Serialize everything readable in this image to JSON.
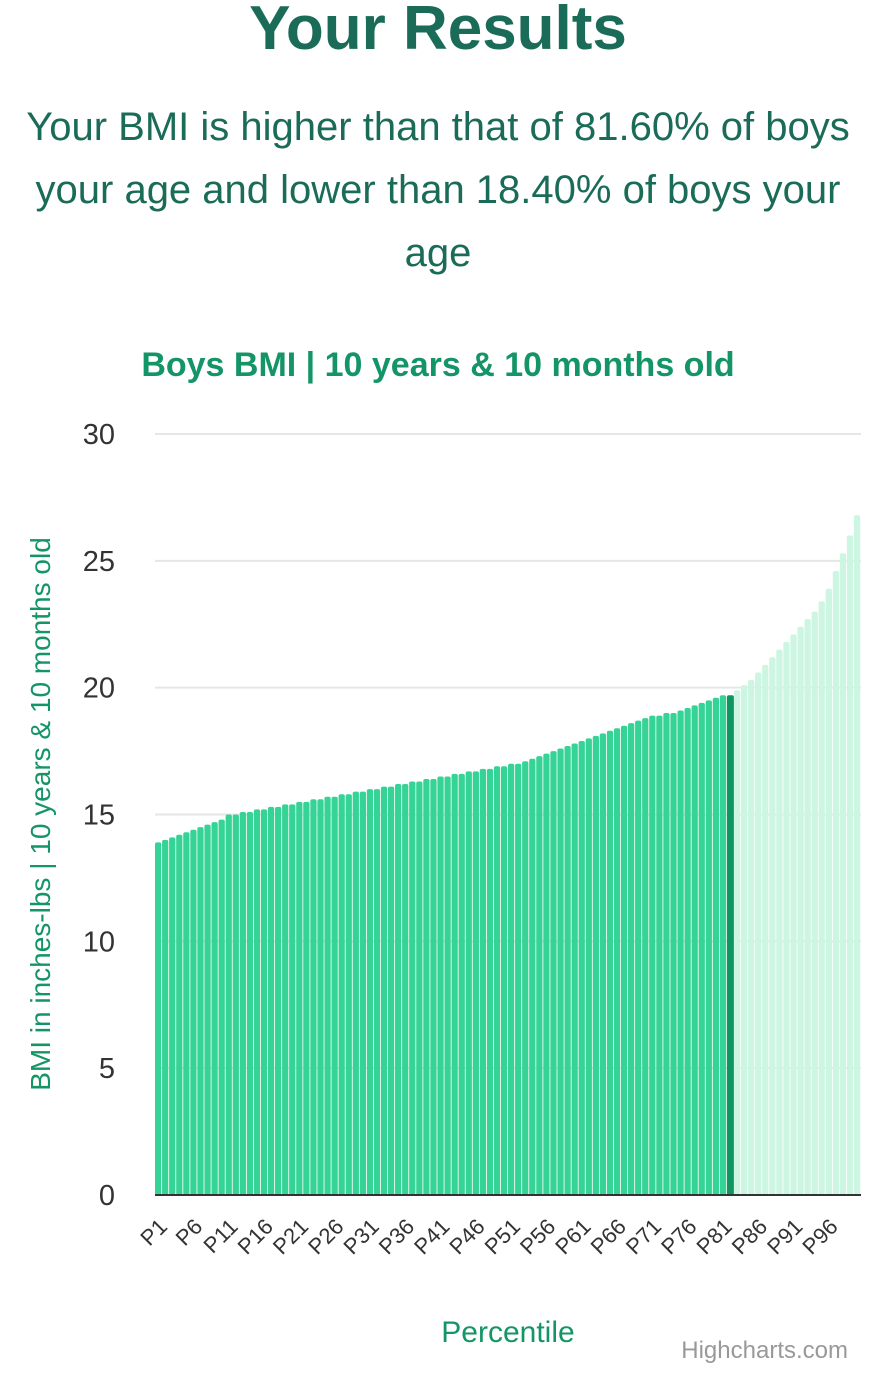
{
  "page": {
    "title": "Your Results",
    "summary": "Your BMI is higher than that of 81.60% of boys your age and lower than 18.40% of boys your age"
  },
  "colors": {
    "heading": "#1a6b57",
    "accent": "#149567",
    "bar_below": "#35d396",
    "bar_highlight": "#0f9462",
    "bar_above": "#ccf6e2",
    "grid": "#e6e6e6",
    "axis_line": "#333333",
    "credits": "#999999"
  },
  "chart_data": {
    "type": "bar",
    "title": "Boys BMI | 10 years & 10 months old",
    "xlabel": "Percentile",
    "ylabel": "BMI in inches-lbs | 10 years & 10 months old",
    "ylim": [
      0,
      30
    ],
    "yticks": [
      0,
      5,
      10,
      15,
      20,
      25,
      30
    ],
    "grid": true,
    "legend": "none",
    "highlight_category": "P82",
    "categories": [
      "P1",
      "P2",
      "P3",
      "P4",
      "P5",
      "P6",
      "P7",
      "P8",
      "P9",
      "P10",
      "P11",
      "P12",
      "P13",
      "P14",
      "P15",
      "P16",
      "P17",
      "P18",
      "P19",
      "P20",
      "P21",
      "P22",
      "P23",
      "P24",
      "P25",
      "P26",
      "P27",
      "P28",
      "P29",
      "P30",
      "P31",
      "P32",
      "P33",
      "P34",
      "P35",
      "P36",
      "P37",
      "P38",
      "P39",
      "P40",
      "P41",
      "P42",
      "P43",
      "P44",
      "P45",
      "P46",
      "P47",
      "P48",
      "P49",
      "P50",
      "P51",
      "P52",
      "P53",
      "P54",
      "P55",
      "P56",
      "P57",
      "P58",
      "P59",
      "P60",
      "P61",
      "P62",
      "P63",
      "P64",
      "P65",
      "P66",
      "P67",
      "P68",
      "P69",
      "P70",
      "P71",
      "P72",
      "P73",
      "P74",
      "P75",
      "P76",
      "P77",
      "P78",
      "P79",
      "P80",
      "P81",
      "P82",
      "P83",
      "P84",
      "P85",
      "P86",
      "P87",
      "P88",
      "P89",
      "P90",
      "P91",
      "P92",
      "P93",
      "P94",
      "P95",
      "P96",
      "P97",
      "P98",
      "P99",
      "P100"
    ],
    "tick_labels": [
      "P1",
      "P6",
      "P11",
      "P16",
      "P21",
      "P26",
      "P31",
      "P36",
      "P41",
      "P46",
      "P51",
      "P56",
      "P61",
      "P66",
      "P71",
      "P76",
      "P81",
      "P86",
      "P91",
      "P96"
    ],
    "values": [
      13.9,
      14.0,
      14.1,
      14.2,
      14.3,
      14.4,
      14.5,
      14.6,
      14.7,
      14.8,
      15.0,
      15.0,
      15.1,
      15.1,
      15.2,
      15.2,
      15.3,
      15.3,
      15.4,
      15.4,
      15.5,
      15.5,
      15.6,
      15.6,
      15.7,
      15.7,
      15.8,
      15.8,
      15.9,
      15.9,
      16.0,
      16.0,
      16.1,
      16.1,
      16.2,
      16.2,
      16.3,
      16.3,
      16.4,
      16.4,
      16.5,
      16.5,
      16.6,
      16.6,
      16.7,
      16.7,
      16.8,
      16.8,
      16.9,
      16.9,
      17.0,
      17.0,
      17.1,
      17.2,
      17.3,
      17.4,
      17.5,
      17.6,
      17.7,
      17.8,
      17.9,
      18.0,
      18.1,
      18.2,
      18.3,
      18.4,
      18.5,
      18.6,
      18.7,
      18.8,
      18.9,
      18.9,
      19.0,
      19.0,
      19.1,
      19.2,
      19.3,
      19.4,
      19.5,
      19.6,
      19.7,
      19.7,
      19.9,
      20.1,
      20.3,
      20.6,
      20.9,
      21.2,
      21.5,
      21.8,
      22.1,
      22.4,
      22.7,
      23.0,
      23.4,
      23.9,
      24.6,
      25.3,
      26.0,
      26.8
    ]
  }
}
